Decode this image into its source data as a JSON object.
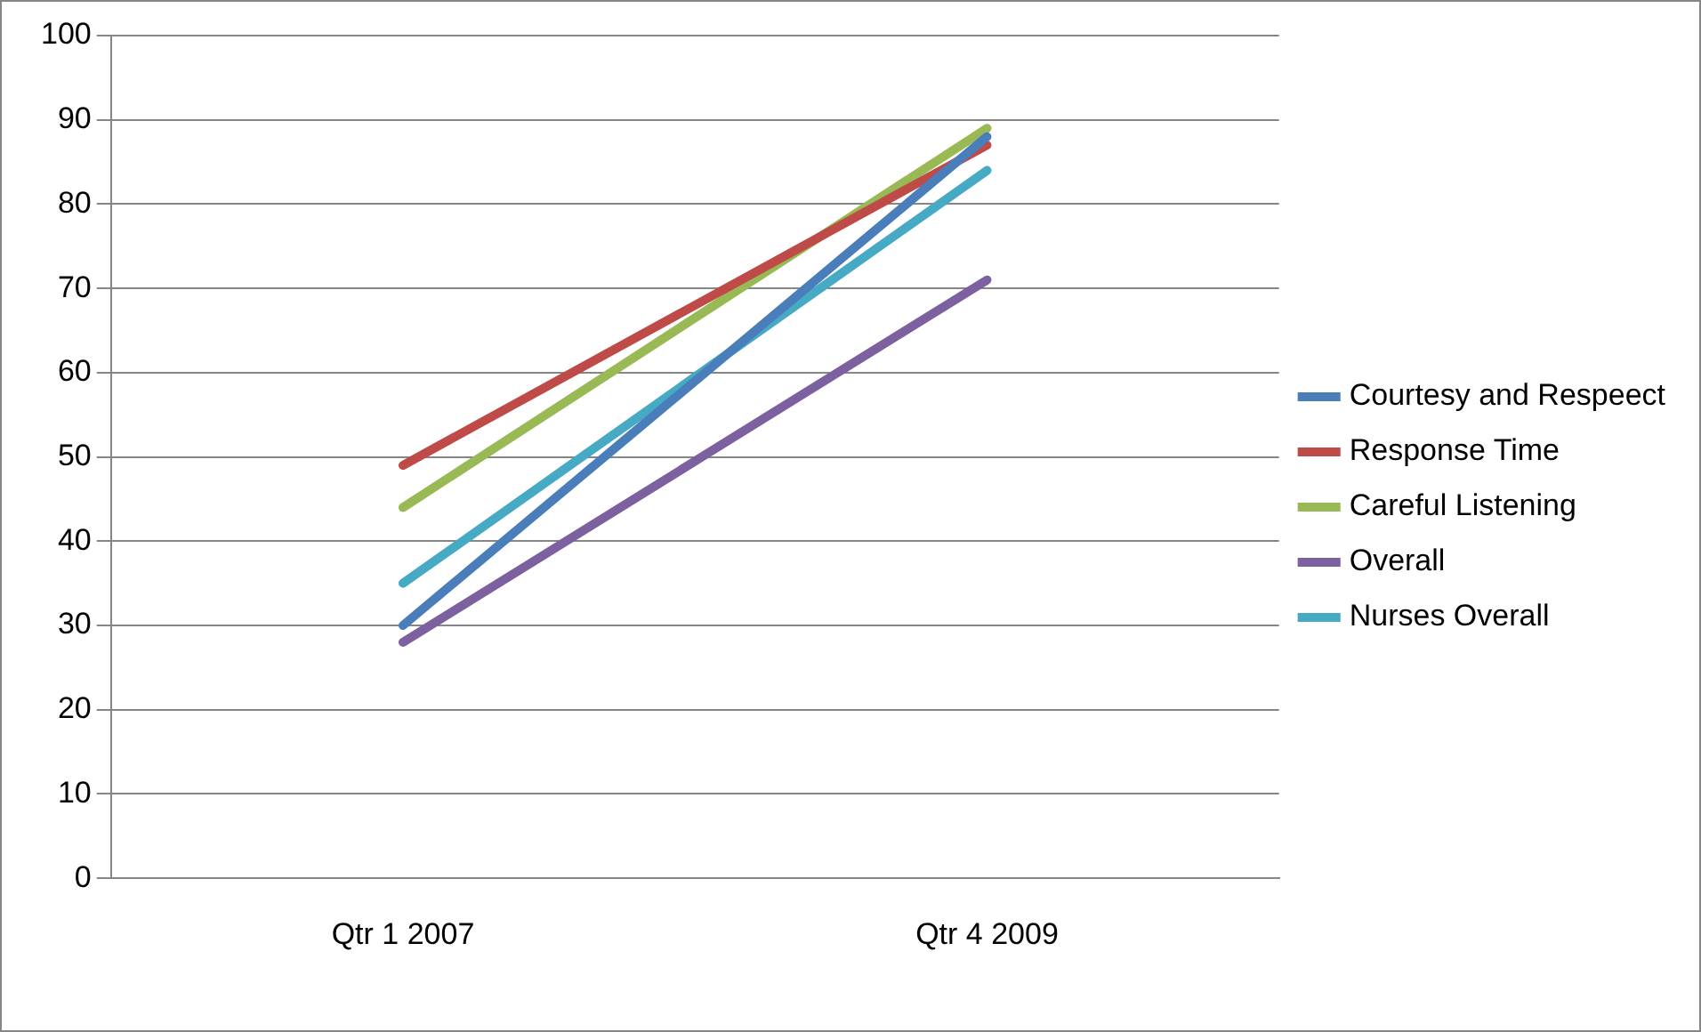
{
  "chart_data": {
    "type": "line",
    "categories": [
      "Qtr 1 2007",
      "Qtr 4 2009"
    ],
    "series": [
      {
        "name": "Courtesy and Respeect",
        "color": "#4a7ebb",
        "values": [
          30,
          88
        ]
      },
      {
        "name": "Response Time",
        "color": "#be4b48",
        "values": [
          49,
          87
        ]
      },
      {
        "name": "Careful Listening",
        "color": "#98b954",
        "values": [
          44,
          89
        ]
      },
      {
        "name": "Overall",
        "color": "#7d60a0",
        "values": [
          28,
          71
        ]
      },
      {
        "name": "Nurses Overall",
        "color": "#46aac5",
        "values": [
          35,
          84
        ]
      }
    ],
    "ylim": [
      0,
      100
    ],
    "yticks": [
      0,
      10,
      20,
      30,
      40,
      50,
      60,
      70,
      80,
      90,
      100
    ],
    "grid": "y",
    "legend": "right",
    "marker": "none",
    "line_style": "solid"
  }
}
